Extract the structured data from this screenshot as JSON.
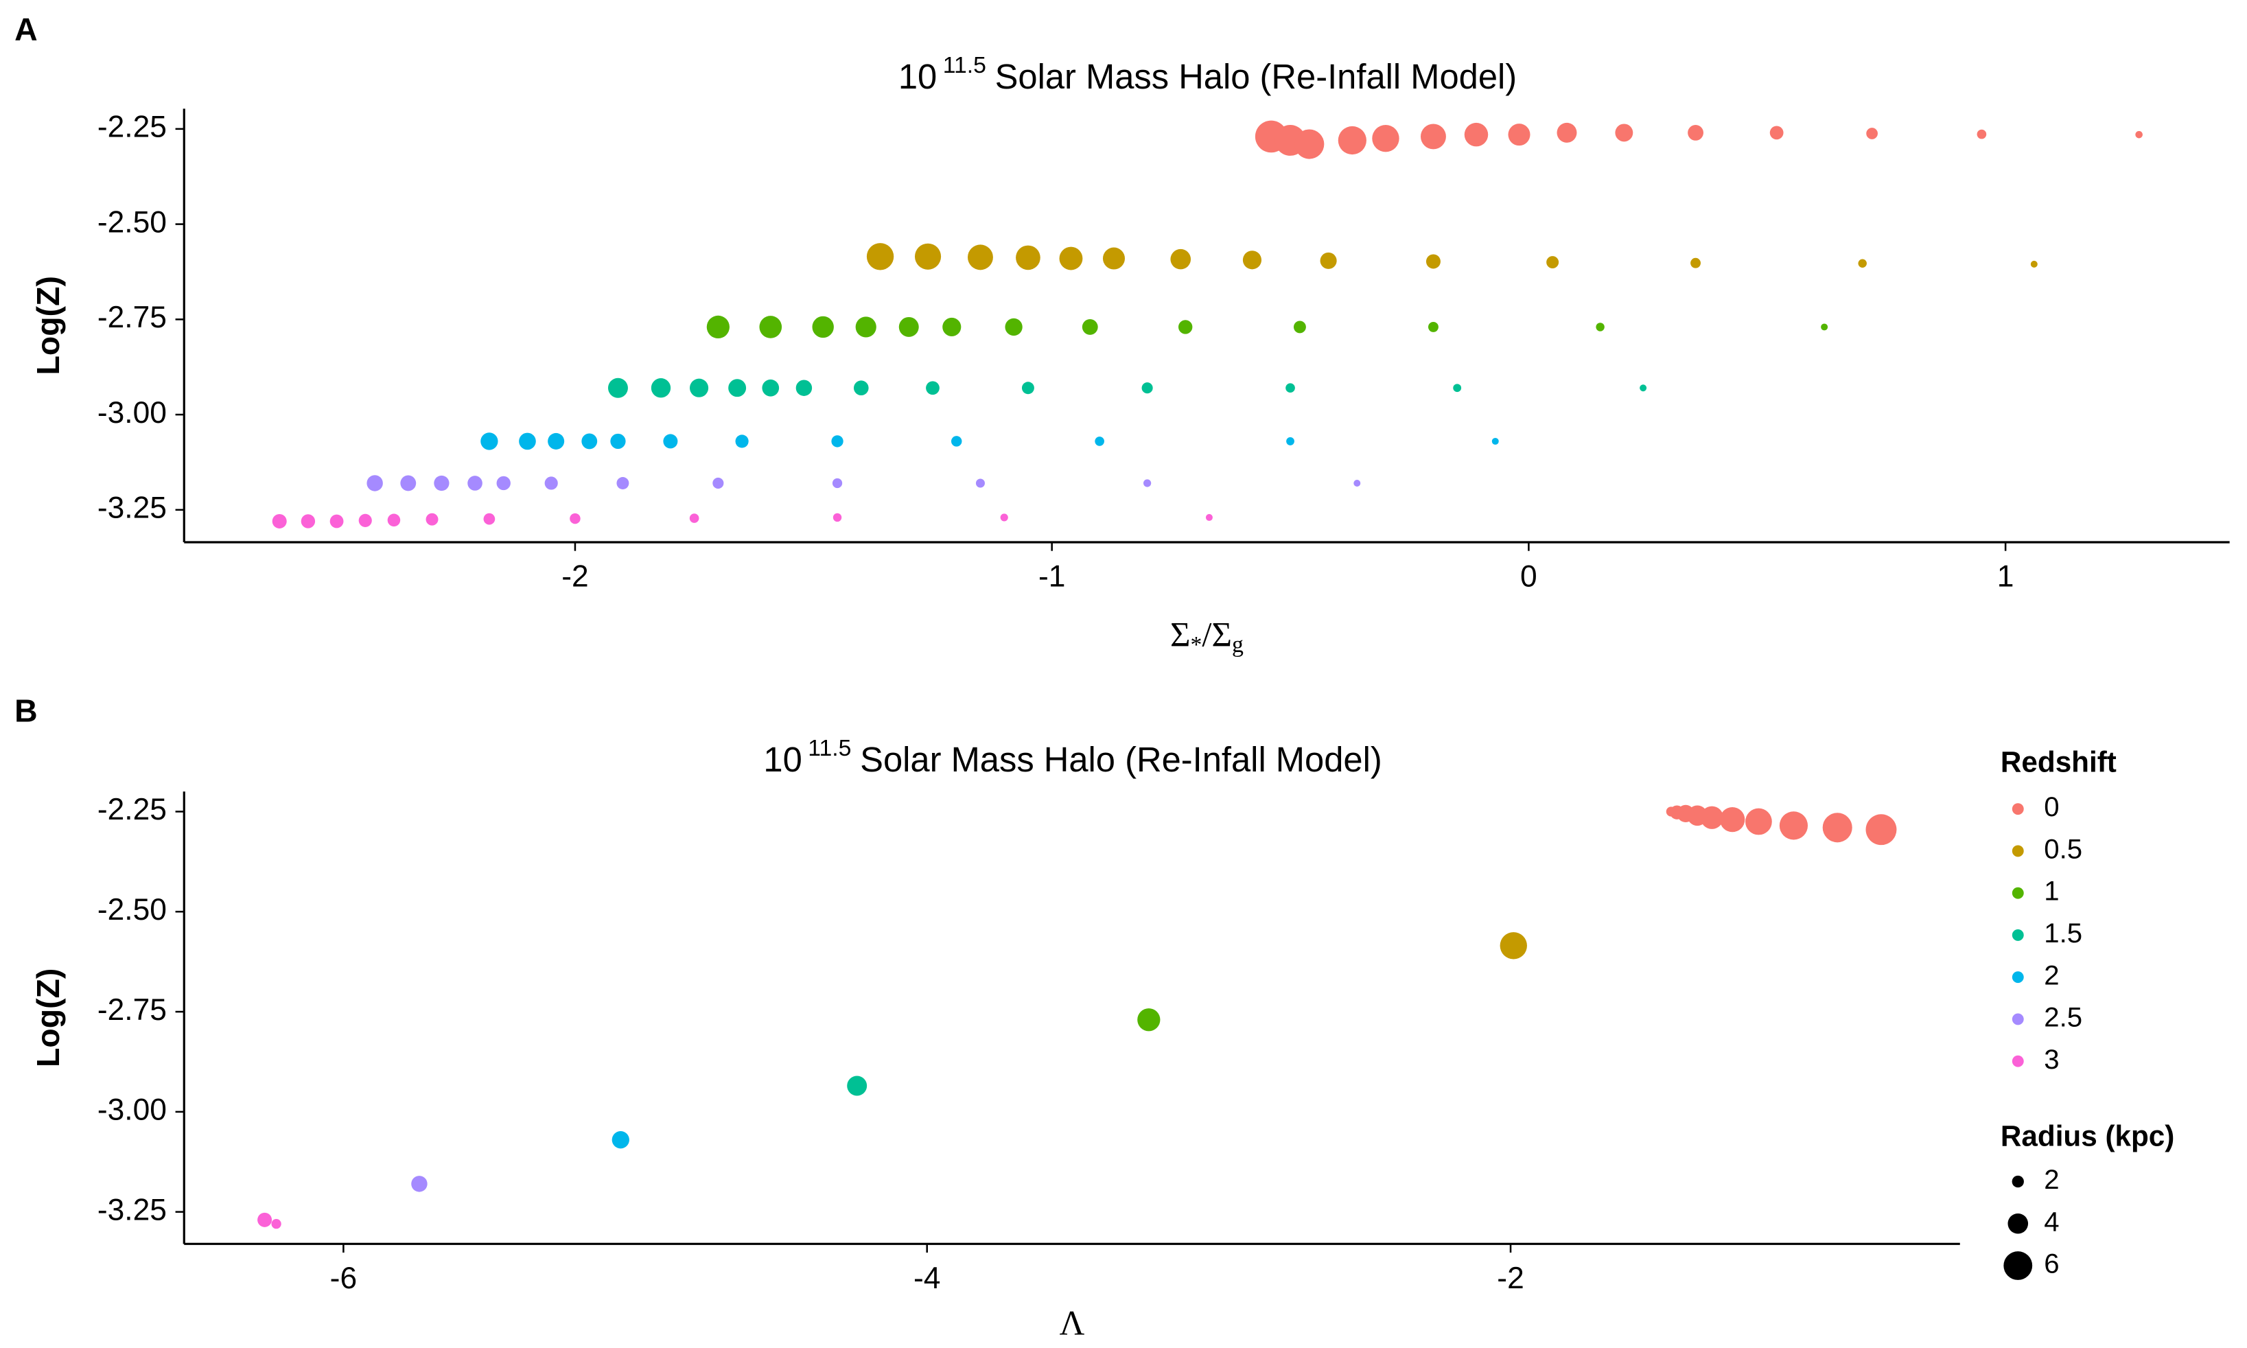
{
  "chart_data": [
    {
      "type": "scatter",
      "panel": "A",
      "title_base": "10",
      "title_exp": "11.5",
      "title_rest": "Solar Mass Halo (Re-Infall Model)",
      "x_label_parts": [
        "Σ",
        "*",
        "/Σ",
        "g"
      ],
      "y_label": "Log(Z)",
      "xlim": [
        -2.82,
        1.47
      ],
      "ylim": [
        -3.335,
        -2.197
      ],
      "xticks": [
        -2,
        -1,
        0,
        1
      ],
      "yticks": [
        -3.25,
        {
          "value": -3,
          "label": "-3.00"
        },
        -2.75,
        {
          "value": -2.5,
          "label": "-2.50"
        },
        -2.25
      ],
      "series": [
        {
          "color": "#F8766D",
          "x": [
            -0.54,
            -0.5,
            -0.46,
            -0.37,
            -0.3,
            -0.2,
            -0.11,
            -0.02,
            0.08,
            0.2,
            0.35,
            0.52,
            0.72,
            0.95,
            1.28
          ],
          "values": [
            -2.27,
            -2.28,
            -2.29,
            -2.28,
            -2.275,
            -2.27,
            -2.265,
            -2.265,
            -2.26,
            -2.26,
            -2.26,
            -2.26,
            -2.262,
            -2.264,
            -2.265
          ],
          "size": [
            6.8,
            6.5,
            6.2,
            5.9,
            5.6,
            5.2,
            4.8,
            4.4,
            3.9,
            3.4,
            2.9,
            2.4,
            1.9,
            1.4,
            0.9
          ]
        },
        {
          "color": "#C49A00",
          "x": [
            -1.36,
            -1.26,
            -1.15,
            -1.05,
            -0.96,
            -0.87,
            -0.73,
            -0.58,
            -0.42,
            -0.2,
            0.05,
            0.35,
            0.7,
            1.06
          ],
          "values": [
            -2.585,
            -2.585,
            -2.587,
            -2.588,
            -2.59,
            -2.59,
            -2.592,
            -2.594,
            -2.596,
            -2.598,
            -2.6,
            -2.602,
            -2.603,
            -2.605
          ],
          "size": [
            5.6,
            5.4,
            5.2,
            5,
            4.7,
            4.4,
            4,
            3.6,
            3.1,
            2.6,
            2.1,
            1.6,
            1.2,
            0.8
          ]
        },
        {
          "color": "#53B400",
          "x": [
            -1.7,
            -1.59,
            -1.48,
            -1.39,
            -1.3,
            -1.21,
            -1.08,
            -0.92,
            -0.72,
            -0.48,
            -0.2,
            0.15,
            0.62
          ],
          "values": [
            -2.77,
            -2.77,
            -2.77,
            -2.77,
            -2.77,
            -2.77,
            -2.77,
            -2.77,
            -2.77,
            -2.77,
            -2.77,
            -2.77,
            -2.77
          ],
          "size": [
            4.6,
            4.5,
            4.3,
            4.1,
            3.9,
            3.6,
            3.3,
            2.9,
            2.5,
            2.1,
            1.6,
            1.2,
            0.8
          ]
        },
        {
          "color": "#00C094",
          "x": [
            -1.91,
            -1.82,
            -1.74,
            -1.66,
            -1.59,
            -1.52,
            -1.4,
            -1.25,
            -1.05,
            -0.8,
            -0.5,
            -0.15,
            0.24
          ],
          "values": [
            -2.93,
            -2.93,
            -2.93,
            -2.93,
            -2.93,
            -2.93,
            -2.93,
            -2.93,
            -2.93,
            -2.93,
            -2.93,
            -2.93,
            -2.93
          ],
          "size": [
            3.9,
            3.8,
            3.6,
            3.4,
            3.2,
            3,
            2.7,
            2.4,
            2.1,
            1.8,
            1.4,
            1.1,
            0.8
          ]
        },
        {
          "color": "#00B6EB",
          "x": [
            -2.18,
            -2.1,
            -2.04,
            -1.97,
            -1.91,
            -1.8,
            -1.65,
            -1.45,
            -1.2,
            -0.9,
            -0.5,
            -0.07
          ],
          "values": [
            -3.07,
            -3.07,
            -3.07,
            -3.07,
            -3.07,
            -3.07,
            -3.07,
            -3.07,
            -3.07,
            -3.07,
            -3.07,
            -3.07
          ],
          "size": [
            3.3,
            3.2,
            3.1,
            2.9,
            2.8,
            2.6,
            2.3,
            2,
            1.7,
            1.4,
            1.1,
            0.8
          ]
        },
        {
          "color": "#A58AFF",
          "x": [
            -2.42,
            -2.35,
            -2.28,
            -2.21,
            -2.15,
            -2.05,
            -1.9,
            -1.7,
            -1.45,
            -1.15,
            -0.8,
            -0.36
          ],
          "values": [
            -3.18,
            -3.18,
            -3.18,
            -3.18,
            -3.18,
            -3.18,
            -3.18,
            -3.18,
            -3.18,
            -3.18,
            -3.18,
            -3.18
          ],
          "size": [
            3,
            2.9,
            2.8,
            2.7,
            2.5,
            2.3,
            2.1,
            1.8,
            1.5,
            1.3,
            1,
            0.8
          ]
        },
        {
          "color": "#FB61D7",
          "x": [
            -2.62,
            -2.56,
            -2.5,
            -2.44,
            -2.38,
            -2.3,
            -2.18,
            -2,
            -1.75,
            -1.45,
            -1.1,
            -0.67
          ],
          "values": [
            -3.28,
            -3.28,
            -3.28,
            -3.278,
            -3.277,
            -3.275,
            -3.274,
            -3.273,
            -3.272,
            -3.27,
            -3.27,
            -3.27
          ],
          "size": [
            2.6,
            2.5,
            2.4,
            2.3,
            2.2,
            2.1,
            1.9,
            1.7,
            1.4,
            1.2,
            1,
            0.8
          ]
        }
      ]
    },
    {
      "type": "scatter",
      "panel": "B",
      "title_base": "10",
      "title_exp": "11.5",
      "title_rest": "Solar Mass Halo (Re-Infall Model)",
      "x_label": "Λ",
      "y_label": "Log(Z)",
      "xlim": [
        -6.546,
        -0.46
      ],
      "ylim": [
        -3.33,
        -2.2
      ],
      "xticks": [
        -6,
        -4,
        -2
      ],
      "yticks": [
        -3.25,
        {
          "value": -3,
          "label": "-3.00"
        },
        -2.75,
        {
          "value": -2.5,
          "label": "-2.50"
        },
        -2.25
      ],
      "legend_title": "Redshift",
      "size_legend_title": "Radius (kpc)",
      "size_legend": [
        2,
        4,
        6
      ],
      "series": [
        {
          "name": "0",
          "color": "#F8766D",
          "x": [
            -0.73,
            -0.88,
            -1.03,
            -1.15,
            -1.24,
            -1.31,
            -1.36,
            -1.4,
            -1.43,
            -1.45
          ],
          "values": [
            -2.295,
            -2.29,
            -2.285,
            -2.275,
            -2.27,
            -2.265,
            -2.26,
            -2.255,
            -2.252,
            -2.25
          ],
          "size": [
            6.5,
            6.2,
            5.9,
            5.5,
            5.1,
            4.6,
            4,
            3.3,
            2.5,
            1.5
          ]
        },
        {
          "name": "0.5",
          "color": "#C49A00",
          "x": [
            -1.99
          ],
          "values": [
            -2.585
          ],
          "size": [
            5.6
          ]
        },
        {
          "name": "1",
          "color": "#53B400",
          "x": [
            -3.24
          ],
          "values": [
            -2.77
          ],
          "size": [
            4.6
          ]
        },
        {
          "name": "1.5",
          "color": "#00C094",
          "x": [
            -4.24
          ],
          "values": [
            -2.935
          ],
          "size": [
            3.9
          ]
        },
        {
          "name": "2",
          "color": "#00B6EB",
          "x": [
            -5.05
          ],
          "values": [
            -3.07
          ],
          "size": [
            3.3
          ]
        },
        {
          "name": "2.5",
          "color": "#A58AFF",
          "x": [
            -5.74
          ],
          "values": [
            -3.18
          ],
          "size": [
            3
          ]
        },
        {
          "name": "3",
          "color": "#FB61D7",
          "x": [
            -6.27,
            -6.23
          ],
          "values": [
            -3.27,
            -3.28
          ],
          "size": [
            2.6,
            1.5
          ]
        }
      ]
    }
  ]
}
